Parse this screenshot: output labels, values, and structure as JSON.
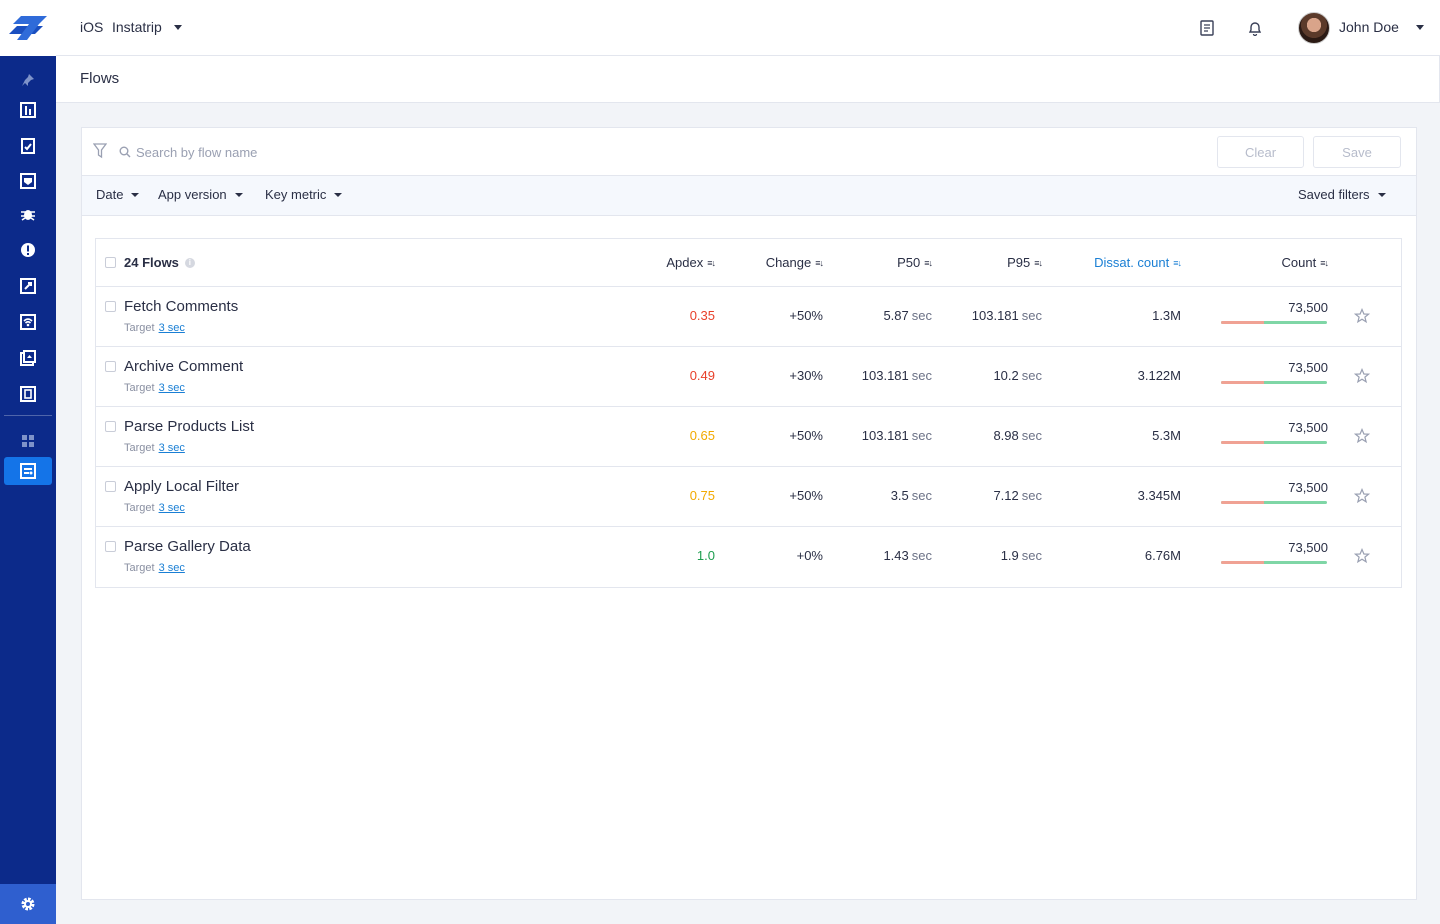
{
  "sidebar": {
    "icons": [
      "pin-icon",
      "dashboard-icon",
      "reports-icon",
      "crashes-icon",
      "bug-icon",
      "alert-icon",
      "rocket-icon",
      "network-icon",
      "screens-icon",
      "apps-icon",
      "grid-icon",
      "flows-icon"
    ],
    "bottom_icon": "gear-icon"
  },
  "topbar": {
    "platform": "iOS",
    "app_name": "Instatrip",
    "user_name": "John Doe",
    "icons": [
      "notes-icon",
      "bell-icon"
    ]
  },
  "page": {
    "title": "Flows"
  },
  "search": {
    "placeholder": "Search by flow name",
    "value": ""
  },
  "buttons": {
    "clear": "Clear",
    "save": "Save"
  },
  "filters": {
    "date": "Date",
    "app_version": "App version",
    "key_metric": "Key metric",
    "saved_filters": "Saved filters"
  },
  "table": {
    "title": "24 Flows",
    "columns": {
      "apdex": "Apdex",
      "change": "Change",
      "p50": "P50",
      "p95": "P95",
      "dissat": "Dissat. count",
      "count": "Count"
    },
    "target_label": "Target",
    "unit": "sec",
    "rows": [
      {
        "name": "Fetch Comments",
        "target": "3 sec",
        "apdex": "0.35",
        "apdex_color": "#e8402a",
        "change": "+50%",
        "p50": "5.87",
        "p95": "103.181",
        "dissat": "1.3M",
        "count": "73,500",
        "bad_fraction": 0.41
      },
      {
        "name": "Archive Comment",
        "target": "3 sec",
        "apdex": "0.49",
        "apdex_color": "#e8402a",
        "change": "+30%",
        "p50": "103.181",
        "p95": "10.2",
        "dissat": "3.122M",
        "count": "73,500",
        "bad_fraction": 0.41
      },
      {
        "name": "Parse Products List",
        "target": "3 sec",
        "apdex": "0.65",
        "apdex_color": "#f2a900",
        "change": "+50%",
        "p50": "103.181",
        "p95": "8.98",
        "dissat": "5.3M",
        "count": "73,500",
        "bad_fraction": 0.41
      },
      {
        "name": "Apply Local Filter",
        "target": "3 sec",
        "apdex": "0.75",
        "apdex_color": "#f2a900",
        "change": "+50%",
        "p50": "3.5",
        "p95": "7.12",
        "dissat": "3.345M",
        "count": "73,500",
        "bad_fraction": 0.41
      },
      {
        "name": "Parse Gallery Data",
        "target": "3 sec",
        "apdex": "1.0",
        "apdex_color": "#1e9e4f",
        "change": "+0%",
        "p50": "1.43",
        "p95": "1.9",
        "dissat": "6.76M",
        "count": "73,500",
        "bad_fraction": 0.41
      }
    ]
  }
}
